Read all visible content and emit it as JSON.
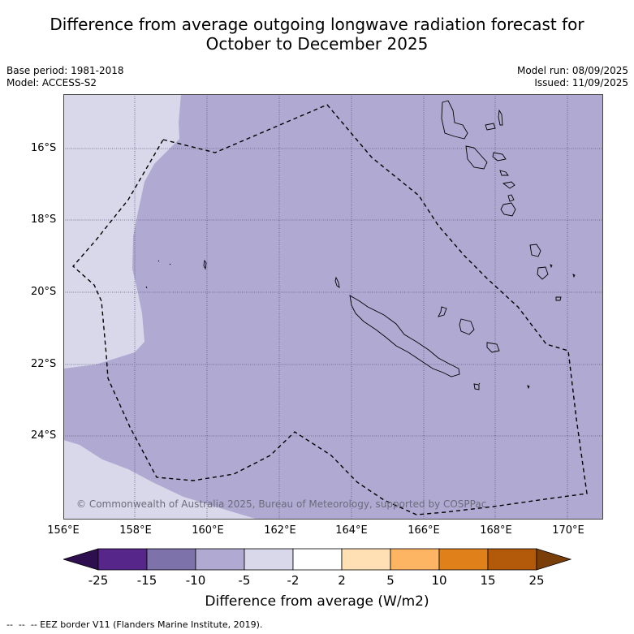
{
  "title_line1": "Difference from average outgoing longwave radiation forecast for",
  "title_line2": "October to December 2025",
  "base_period": "Base period: 1981-2018",
  "model": "Model: ACCESS-S2",
  "model_run": "Model run: 08/09/2025",
  "issued": "Issued: 11/09/2025",
  "copyright": "© Commonwealth of Australia 2025, Bureau of Meteorology, supported by COSPPac",
  "lat_labels": [
    "16°S",
    "18°S",
    "20°S",
    "22°S",
    "24°S"
  ],
  "lon_labels": [
    "156°E",
    "158°E",
    "160°E",
    "162°E",
    "164°E",
    "166°E",
    "168°E",
    "170°E"
  ],
  "colorbar": {
    "title": "Difference from average (W/m2)",
    "ticks": [
      "-25",
      "-15",
      "-10",
      "-5",
      "-2",
      "2",
      "5",
      "10",
      "15",
      "25"
    ],
    "colors": [
      "#2d0e4f",
      "#56268a",
      "#7e72ab",
      "#b0aad2",
      "#d9d8ea",
      "#ffffff",
      "#ffe0b5",
      "#fdb563",
      "#e0801a",
      "#b25a0a",
      "#7a3e08"
    ]
  },
  "legend": {
    "eez_text": "-- EEZ border V11 (Flanders Marine Institute, 2019)."
  },
  "colors": {
    "main_field": "#b0aad2",
    "light_field": "#d9d8ea"
  }
}
